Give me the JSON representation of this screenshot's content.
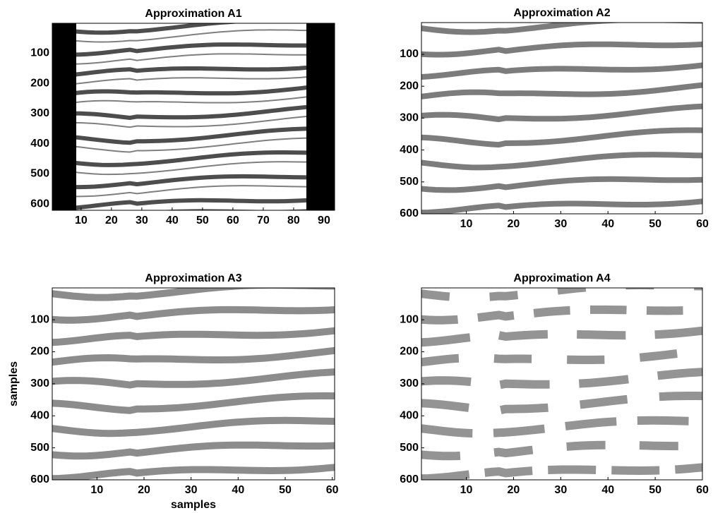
{
  "chart_data": [
    {
      "type": "image",
      "title": "Approximation A1",
      "colormap": "gray",
      "y_reversed": true,
      "xlim": [
        0.5,
        93.5
      ],
      "ylim": [
        0.5,
        621
      ],
      "xticks": [
        10,
        20,
        30,
        40,
        50,
        60,
        70,
        80,
        90
      ],
      "yticks": [
        100,
        200,
        300,
        400,
        500,
        600
      ]
    },
    {
      "type": "image",
      "title": "Approximation A2",
      "colormap": "gray",
      "y_reversed": true,
      "xlim": [
        0.5,
        60
      ],
      "ylim": [
        0.5,
        600
      ],
      "xticks": [
        10,
        20,
        30,
        40,
        50,
        60
      ],
      "yticks": [
        100,
        200,
        300,
        400,
        500,
        600
      ]
    },
    {
      "type": "image",
      "title": "Approximation A3",
      "colormap": "gray",
      "y_reversed": true,
      "xlim": [
        0.5,
        60.5
      ],
      "ylim": [
        0.5,
        600
      ],
      "xticks": [
        10,
        20,
        30,
        40,
        50,
        60
      ],
      "yticks": [
        100,
        200,
        300,
        400,
        500,
        600
      ],
      "xlabel": "samples",
      "ylabel": "samples"
    },
    {
      "type": "image",
      "title": "Approximation A4",
      "colormap": "gray",
      "y_reversed": true,
      "xlim": [
        0.5,
        60
      ],
      "ylim": [
        0.5,
        600
      ],
      "xticks": [
        10,
        20,
        30,
        40,
        50,
        60
      ],
      "yticks": [
        100,
        200,
        300,
        400,
        500,
        600
      ]
    }
  ]
}
